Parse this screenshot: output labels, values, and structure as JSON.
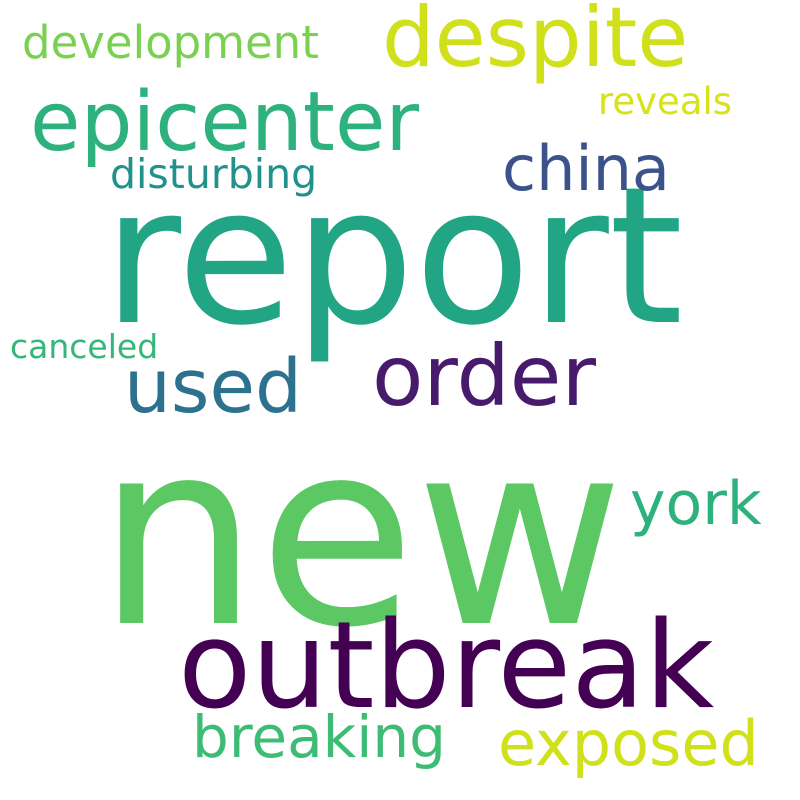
{
  "words": [
    {
      "text": "new",
      "color": "#5cc863"
    },
    {
      "text": "report",
      "color": "#21a585"
    },
    {
      "text": "outbreak",
      "color": "#440154"
    },
    {
      "text": "epicenter",
      "color": "#2db27d"
    },
    {
      "text": "despite",
      "color": "#d0e11c"
    },
    {
      "text": "order",
      "color": "#481a6c"
    },
    {
      "text": "china",
      "color": "#3b528b"
    },
    {
      "text": "used",
      "color": "#2c728e"
    },
    {
      "text": "development",
      "color": "#7ad151"
    },
    {
      "text": "disturbing",
      "color": "#21918c"
    },
    {
      "text": "reveals",
      "color": "#d8e219"
    },
    {
      "text": "canceled",
      "color": "#35b779"
    },
    {
      "text": "york",
      "color": "#2db27d"
    },
    {
      "text": "breaking",
      "color": "#3dbc74"
    },
    {
      "text": "exposed",
      "color": "#d0e11c"
    }
  ]
}
